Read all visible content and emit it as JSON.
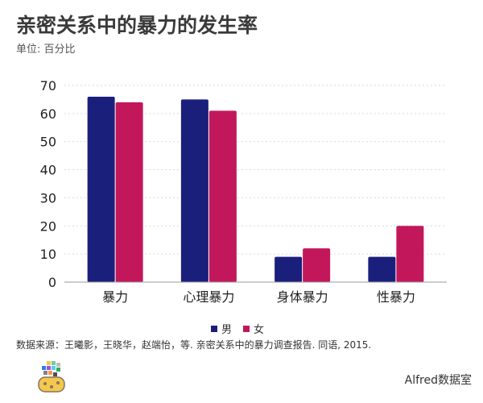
{
  "title": "亲密关系中的暴力的发生率",
  "subtitle": "单位: 百分比",
  "source": "数据来源：王曦影，王晓华，赵端怡，等. 亲密关系中的暴力调查报告. 同语, 2015.",
  "brand": "Alfred数据室",
  "logo_icon": "pixel-mosaic-logo",
  "colors": {
    "male": "#1b1f7c",
    "female": "#c2185b",
    "grid": "#d9d9d9",
    "axis": "#999999"
  },
  "chart_data": {
    "type": "bar",
    "title": "亲密关系中的暴力的发生率",
    "subtitle": "单位: 百分比",
    "categories": [
      "暴力",
      "心理暴力",
      "身体暴力",
      "性暴力"
    ],
    "series": [
      {
        "name": "男",
        "values": [
          66,
          65,
          9,
          9
        ]
      },
      {
        "name": "女",
        "values": [
          64,
          61,
          12,
          20
        ]
      }
    ],
    "ylim": [
      0,
      70
    ],
    "yticks": [
      0,
      10,
      20,
      30,
      40,
      50,
      60,
      70
    ],
    "xlabel": "",
    "ylabel": "",
    "grid": true,
    "legend": "bottom-center"
  }
}
